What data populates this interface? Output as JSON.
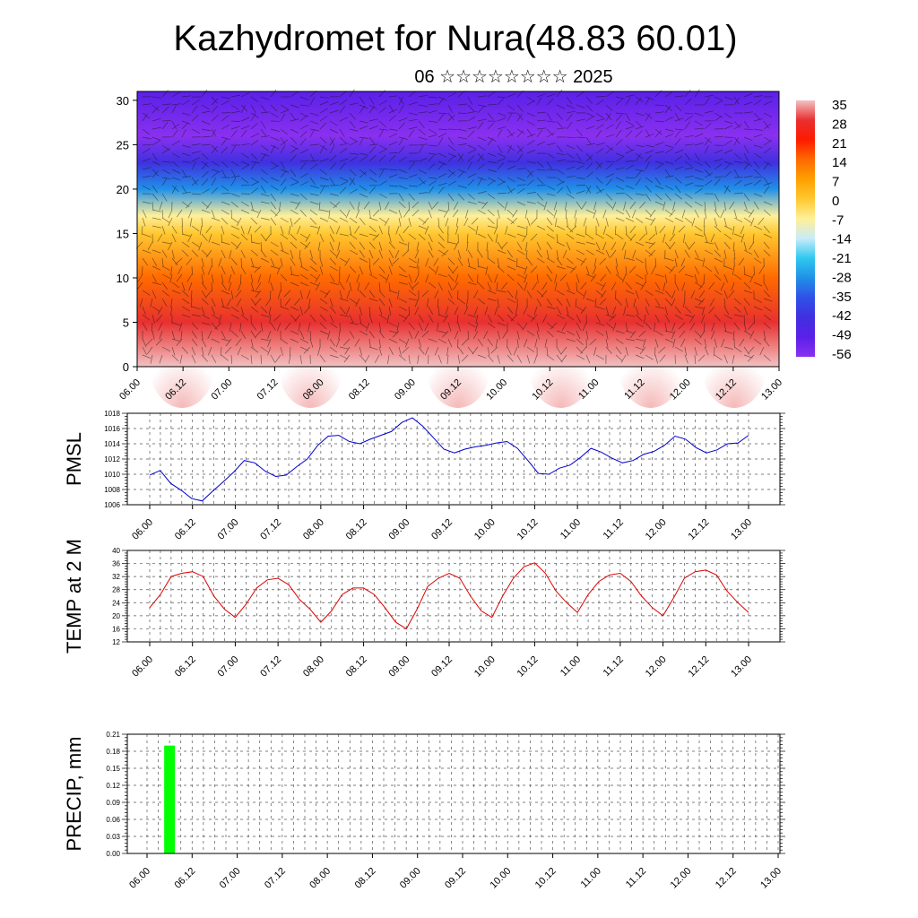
{
  "title": "Kazhydromet for Nura(48.83 60.01)",
  "subtitle": "06 ☆☆☆☆☆☆☆☆ 2025",
  "time_labels": [
    "06.00",
    "06.12",
    "07.00",
    "07.12",
    "08.00",
    "08.12",
    "09.00",
    "09.12",
    "10.00",
    "10.12",
    "11.00",
    "11.12",
    "12.00",
    "12.12",
    "13.00"
  ],
  "chart_data": [
    {
      "type": "heatmap",
      "title": "",
      "ylim": [
        0,
        31
      ],
      "yticks": [
        0,
        5,
        10,
        15,
        20,
        25,
        30
      ],
      "colorbar": {
        "labels": [
          "35",
          "28",
          "21",
          "14",
          "7",
          "0",
          "-7",
          "-14",
          "-21",
          "-28",
          "-35",
          "-42",
          "-49",
          "-56"
        ],
        "colors": [
          "#f2c2c2",
          "#e83030",
          "#ff1a00",
          "#ff6a00",
          "#ffa000",
          "#ffc830",
          "#fff09a",
          "#c8ecf8",
          "#30c8f0",
          "#2090e8",
          "#3050e8",
          "#4030e0",
          "#5a20e8",
          "#8a30f0"
        ]
      },
      "layers": [
        {
          "height": 0,
          "temp": 32
        },
        {
          "height": 5,
          "temp": 26
        },
        {
          "height": 10,
          "temp": 14
        },
        {
          "height": 15,
          "temp": 2
        },
        {
          "height": 17,
          "temp": -10
        },
        {
          "height": 20,
          "temp": -28
        },
        {
          "height": 23,
          "temp": -45
        },
        {
          "height": 26,
          "temp": -58
        },
        {
          "height": 31,
          "temp": -50
        }
      ]
    },
    {
      "type": "line",
      "ylabel": "PMSL",
      "ylim": [
        1006,
        1018
      ],
      "yticks": [
        1006,
        1008,
        1010,
        1012,
        1014,
        1016,
        1018
      ],
      "color": "#0000cc",
      "values": [
        1009.9,
        1010.5,
        1008.8,
        1007.9,
        1006.8,
        1006.5,
        1007.8,
        1009.0,
        1010.3,
        1011.8,
        1011.5,
        1010.4,
        1009.7,
        1009.9,
        1011.0,
        1012.0,
        1013.8,
        1015.0,
        1015.1,
        1014.3,
        1014.0,
        1014.6,
        1015.1,
        1015.6,
        1016.8,
        1017.4,
        1016.3,
        1014.8,
        1013.3,
        1012.8,
        1013.3,
        1013.6,
        1013.8,
        1014.1,
        1014.3,
        1013.4,
        1011.8,
        1010.1,
        1010.0,
        1010.8,
        1011.2,
        1012.2,
        1013.4,
        1012.9,
        1012.1,
        1011.5,
        1011.8,
        1012.6,
        1013.0,
        1013.8,
        1015.0,
        1014.6,
        1013.5,
        1012.8,
        1013.2,
        1014.0,
        1014.1,
        1015.1
      ]
    },
    {
      "type": "line",
      "ylabel": "TEMP at 2 M",
      "ylim": [
        12,
        40
      ],
      "yticks": [
        12,
        16,
        20,
        24,
        28,
        32,
        36,
        40
      ],
      "color": "#dd0000",
      "values": [
        22.5,
        26.5,
        32,
        33,
        33.5,
        32,
        26,
        22,
        19.5,
        23.5,
        28.5,
        31,
        31.5,
        29.5,
        25,
        22,
        18,
        21.5,
        26.5,
        28.5,
        28.5,
        26.5,
        22.5,
        18,
        16,
        22,
        29,
        31.5,
        33,
        31.5,
        26,
        21.5,
        19.5,
        26,
        31.5,
        35,
        36.2,
        33,
        27.5,
        24,
        21,
        26.5,
        30.5,
        32.5,
        33,
        30.5,
        26,
        22.5,
        20,
        25.5,
        31.5,
        33.5,
        34,
        32.5,
        27.5,
        24,
        21
      ]
    },
    {
      "type": "bar",
      "ylabel": "PRECIP, mm",
      "ylim": [
        0,
        0.21
      ],
      "yticks": [
        "0.00",
        "0.03",
        "0.06",
        "0.09",
        "0.12",
        "0.15",
        "0.18",
        "0.21"
      ],
      "color": "#00ff00",
      "bars": [
        {
          "x": "06.06",
          "value": 0.19
        }
      ]
    }
  ]
}
